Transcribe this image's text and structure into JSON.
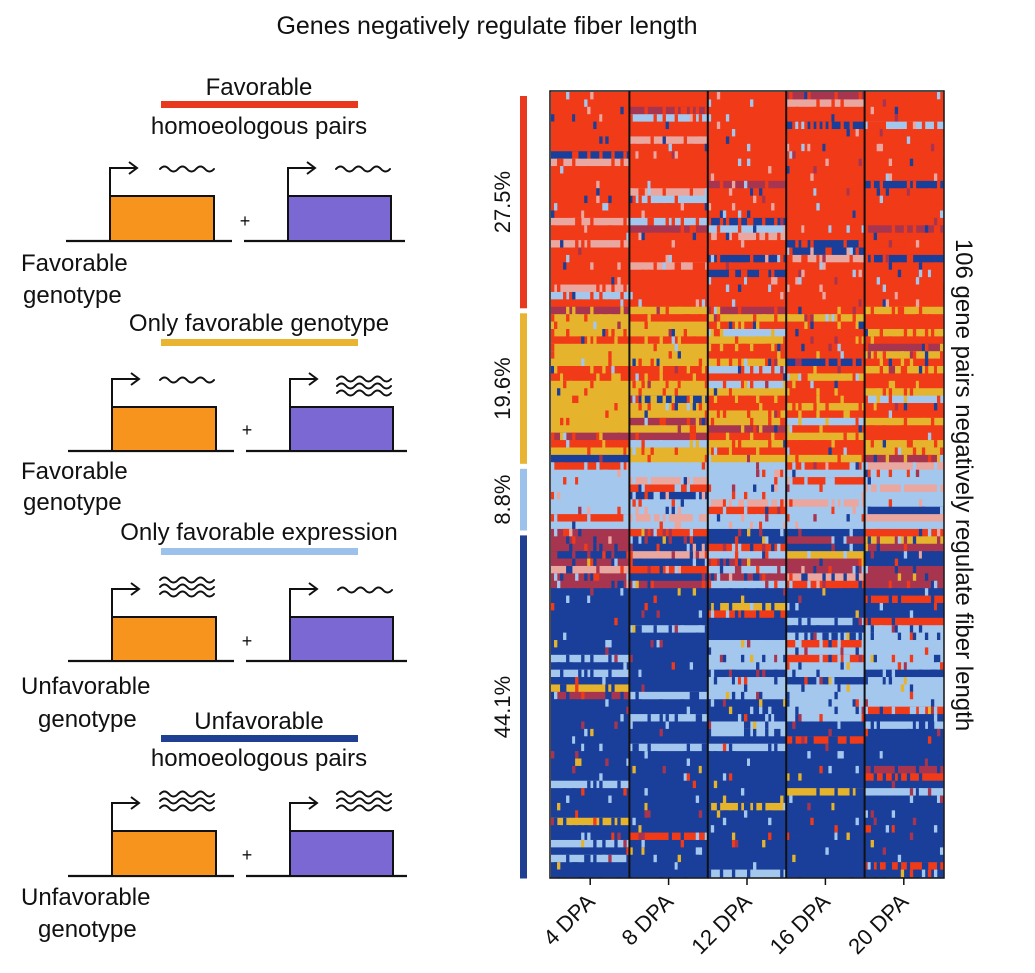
{
  "title": "Genes negatively regulate fiber length",
  "colors": {
    "favorable_pairs": "#e8391f",
    "only_favorable_genotype": "#e8b431",
    "only_favorable_expression": "#9cc2ec",
    "unfavorable_pairs": "#1f3f93",
    "gene_a": "#f7941d",
    "gene_b": "#7b68d3",
    "heat_red": "#f13a17",
    "heat_yellow": "#e5b42c",
    "heat_lightblue": "#a4c7ee",
    "heat_blue": "#1a3f9a",
    "heat_darkred": "#a8354f"
  },
  "scenarios": [
    {
      "key": "favorable_pairs",
      "header_lines": [
        "Favorable",
        "homoeologous pairs"
      ],
      "caption_lines": [
        "Favorable",
        "genotype"
      ],
      "expr_a": "low",
      "expr_b": "low"
    },
    {
      "key": "only_favorable_genotype",
      "header_lines": [
        "Only favorable genotype"
      ],
      "caption_lines": [
        "Favorable",
        "genotype"
      ],
      "expr_a": "low",
      "expr_b": "high"
    },
    {
      "key": "only_favorable_expression",
      "header_lines": [
        "Only favorable expression"
      ],
      "caption_lines": [
        "Unfavorable",
        "genotype"
      ],
      "expr_a": "high",
      "expr_b": "low"
    },
    {
      "key": "unfavorable_pairs",
      "header_lines": [
        "Unfavorable",
        "homoeologous pairs"
      ],
      "caption_lines": [
        "Unfavorable",
        "genotype"
      ],
      "expr_a": "high",
      "expr_b": "high"
    }
  ],
  "plus_sign": "+",
  "chart_data": {
    "type": "heatmap",
    "ylabel": "106 gene pairs negatively regulate fiber length",
    "n_rows": 106,
    "columns": [
      "4 DPA",
      "8 DPA",
      "12 DPA",
      "16 DPA",
      "20 DPA"
    ],
    "groups": [
      {
        "name": "Favorable homoeologous pairs",
        "percent": "27.5%",
        "share": 27.5
      },
      {
        "name": "Only favorable genotype",
        "percent": "19.6%",
        "share": 19.6
      },
      {
        "name": "Only favorable expression",
        "percent": "8.8%",
        "share": 8.8
      },
      {
        "name": "Unfavorable homoeologous pairs",
        "percent": "44.1%",
        "share": 44.1
      }
    ]
  }
}
